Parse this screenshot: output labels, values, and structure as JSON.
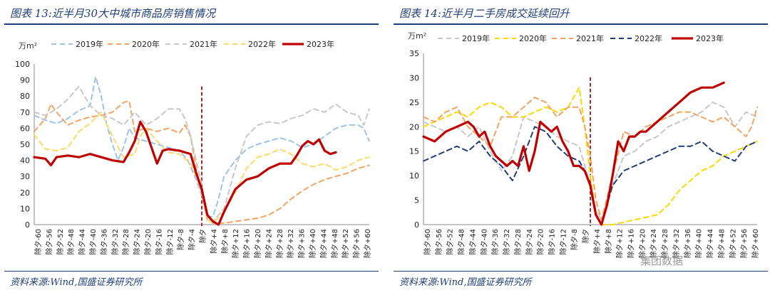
{
  "panels": [
    {
      "title": "图表 13:近半月30大中城市商品房销售情况",
      "source": "资料来源:Wind,国盛证券研究所"
    },
    {
      "title": "图表 14:近半月二手房成交延续回升",
      "source": "资料来源:Wind,国盛证券研究所"
    }
  ],
  "watermark": "集团数据",
  "chart_data": [
    {
      "type": "line",
      "title": "近半月30大中城市商品房销售情况",
      "ylabel": "万m²",
      "ylim": [
        0,
        100
      ],
      "yticks": [
        0,
        10,
        20,
        30,
        40,
        50,
        60,
        70,
        80,
        90,
        100
      ],
      "x_range": [
        -60,
        60
      ],
      "marker_x": 0,
      "marker_color": "#a52a2a",
      "xticks": [
        "除夕-60",
        "除夕-56",
        "除夕-52",
        "除夕-48",
        "除夕-44",
        "除夕-40",
        "除夕-36",
        "除夕-32",
        "除夕-28",
        "除夕-24",
        "除夕-20",
        "除夕-16",
        "除夕-12",
        "除夕-8",
        "除夕-4",
        "除夕",
        "除夕+4",
        "除夕+8",
        "除夕+12",
        "除夕+16",
        "除夕+20",
        "除夕+24",
        "除夕+28",
        "除夕+32",
        "除夕+36",
        "除夕+40",
        "除夕+44",
        "除夕+48",
        "除夕+52",
        "除夕+56",
        "除夕+60"
      ],
      "series": [
        {
          "name": "2019年",
          "color": "#9dc3e6",
          "dash": "dash",
          "width": 2,
          "x": [
            -60,
            -56,
            -52,
            -48,
            -44,
            -40,
            -38,
            -36,
            -34,
            -32,
            -30,
            -28,
            -26,
            -24,
            -20,
            -16,
            -12,
            -8,
            -5,
            -4,
            -2,
            0,
            2,
            4,
            6,
            8,
            12,
            16,
            20,
            24,
            28,
            32,
            36,
            40,
            44,
            48,
            52,
            56,
            58,
            60
          ],
          "y": [
            68,
            65,
            63,
            66,
            71,
            74,
            92,
            80,
            62,
            50,
            40,
            48,
            60,
            54,
            52,
            50,
            48,
            46,
            40,
            36,
            28,
            18,
            5,
            5,
            16,
            30,
            40,
            47,
            50,
            52,
            54,
            52,
            48,
            50,
            55,
            60,
            62,
            62,
            60,
            52
          ]
        },
        {
          "name": "2020年",
          "color": "#f4a460",
          "dash": "dash",
          "width": 2,
          "x": [
            -60,
            -56,
            -54,
            -52,
            -48,
            -44,
            -40,
            -36,
            -32,
            -28,
            -26,
            -24,
            -20,
            -16,
            -12,
            -8,
            -6,
            -4,
            -2,
            0,
            2,
            4,
            8,
            12,
            16,
            20,
            24,
            28,
            32,
            36,
            40,
            44,
            48,
            52,
            56,
            60
          ],
          "y": [
            58,
            66,
            75,
            70,
            62,
            65,
            67,
            68,
            70,
            76,
            77,
            58,
            60,
            58,
            60,
            57,
            62,
            55,
            35,
            20,
            3,
            1,
            1,
            2,
            3,
            4,
            6,
            10,
            16,
            21,
            25,
            28,
            30,
            32,
            35,
            37
          ]
        },
        {
          "name": "2021年",
          "color": "#c8c8c8",
          "dash": "dash",
          "width": 2,
          "x": [
            -60,
            -56,
            -52,
            -48,
            -44,
            -40,
            -36,
            -32,
            -28,
            -24,
            -20,
            -16,
            -12,
            -8,
            -6,
            -4,
            -2,
            0,
            2,
            4,
            8,
            12,
            16,
            20,
            24,
            28,
            32,
            36,
            40,
            44,
            48,
            52,
            56,
            58,
            60
          ],
          "y": [
            70,
            68,
            72,
            78,
            86,
            74,
            68,
            66,
            62,
            70,
            62,
            66,
            72,
            72,
            66,
            55,
            40,
            25,
            5,
            2,
            10,
            35,
            55,
            62,
            64,
            63,
            66,
            68,
            72,
            70,
            75,
            70,
            68,
            62,
            72
          ]
        },
        {
          "name": "2022年",
          "color": "#ffd966",
          "dash": "dash",
          "width": 2,
          "x": [
            -60,
            -56,
            -52,
            -48,
            -44,
            -40,
            -36,
            -32,
            -28,
            -24,
            -22,
            -20,
            -16,
            -12,
            -8,
            -4,
            -2,
            0,
            2,
            4,
            8,
            12,
            16,
            20,
            24,
            28,
            32,
            36,
            40,
            44,
            48,
            52,
            56,
            60
          ],
          "y": [
            56,
            47,
            46,
            48,
            58,
            63,
            70,
            55,
            42,
            44,
            55,
            60,
            52,
            45,
            44,
            38,
            30,
            20,
            3,
            1,
            8,
            20,
            35,
            42,
            44,
            47,
            44,
            38,
            36,
            38,
            34,
            36,
            40,
            42
          ]
        },
        {
          "name": "2023年",
          "color": "#c00000",
          "dash": "solid",
          "width": 3.2,
          "x": [
            -60,
            -56,
            -54,
            -52,
            -48,
            -44,
            -40,
            -36,
            -32,
            -28,
            -26,
            -24,
            -22,
            -20,
            -18,
            -16,
            -14,
            -12,
            -8,
            -4,
            -2,
            0,
            2,
            4,
            6,
            8,
            12,
            16,
            20,
            24,
            28,
            32,
            34,
            36,
            38,
            40,
            42,
            44,
            46,
            48
          ],
          "y": [
            42,
            41,
            37,
            42,
            43,
            42,
            44,
            42,
            40,
            39,
            45,
            52,
            64,
            58,
            48,
            38,
            46,
            47,
            46,
            44,
            32,
            22,
            6,
            2,
            0,
            8,
            22,
            28,
            30,
            35,
            38,
            38,
            43,
            49,
            52,
            50,
            53,
            46,
            44,
            45
          ]
        }
      ]
    },
    {
      "type": "line",
      "title": "近半月二手房成交延续回升",
      "ylabel": "万m²",
      "ylim": [
        0,
        35
      ],
      "yticks": [
        0,
        5,
        10,
        15,
        20,
        25,
        30,
        35
      ],
      "x_range": [
        -60,
        60
      ],
      "marker_x": 0,
      "marker_color": "#a52a2a",
      "xticks": [
        "除夕-60",
        "除夕-56",
        "除夕-52",
        "除夕-48",
        "除夕-44",
        "除夕-40",
        "除夕-36",
        "除夕-32",
        "除夕-28",
        "除夕-24",
        "除夕-20",
        "除夕-16",
        "除夕-12",
        "除夕-8",
        "除夕",
        "除夕+4",
        "除夕+8",
        "除夕+12",
        "除夕+16",
        "除夕+20",
        "除夕+24",
        "除夕+28",
        "除夕+32",
        "除夕+36",
        "除夕+40",
        "除夕+44",
        "除夕+48",
        "除夕+52",
        "除夕+56",
        "除夕+60"
      ],
      "series": [
        {
          "name": "2019年",
          "color": "#c8c8c8",
          "dash": "dash",
          "width": 2,
          "x": [
            -60,
            -56,
            -52,
            -48,
            -44,
            -40,
            -36,
            -32,
            -28,
            -24,
            -20,
            -16,
            -12,
            -8,
            -4,
            -2,
            0,
            2,
            4,
            8,
            12,
            16,
            20,
            24,
            28,
            32,
            36,
            40,
            44,
            48,
            52,
            56,
            60
          ],
          "y": [
            21,
            20,
            19,
            20,
            18,
            20,
            15,
            11,
            14,
            22,
            21,
            20,
            18,
            17,
            16,
            12,
            8,
            3,
            1,
            8,
            14,
            15,
            17,
            18,
            20,
            21,
            22,
            23,
            25,
            24,
            20,
            23,
            22
          ]
        },
        {
          "name": "2020年",
          "color": "#ffd700",
          "dash": "dash",
          "width": 2,
          "x": [
            -60,
            -56,
            -52,
            -48,
            -44,
            -40,
            -36,
            -32,
            -28,
            -24,
            -20,
            -16,
            -12,
            -8,
            -4,
            -2,
            0,
            2,
            4,
            8,
            12,
            16,
            20,
            24,
            28,
            32,
            36,
            40,
            44,
            48,
            52,
            56,
            60
          ],
          "y": [
            20,
            21,
            22,
            23,
            22,
            24,
            25,
            24,
            22,
            22,
            23,
            24,
            23,
            24,
            28,
            20,
            10,
            2,
            0,
            0,
            0.5,
            1,
            1.5,
            2,
            4,
            7,
            9,
            11,
            12,
            14,
            15,
            16,
            17
          ]
        },
        {
          "name": "2021年",
          "color": "#f4a460",
          "dash": "dash",
          "width": 2,
          "x": [
            -60,
            -56,
            -52,
            -48,
            -44,
            -40,
            -36,
            -32,
            -28,
            -24,
            -20,
            -16,
            -12,
            -8,
            -4,
            -2,
            0,
            2,
            4,
            8,
            12,
            16,
            20,
            24,
            28,
            32,
            36,
            40,
            44,
            48,
            52,
            56,
            58,
            60
          ],
          "y": [
            22,
            21,
            23,
            24,
            20,
            18,
            16,
            22,
            22,
            24,
            26,
            25,
            22,
            24,
            24,
            20,
            14,
            5,
            1,
            10,
            19,
            18,
            20,
            21,
            22,
            23,
            23,
            22,
            21,
            22,
            20,
            18,
            20,
            24
          ]
        },
        {
          "name": "2022年",
          "color": "#1f3f7a",
          "dash": "dash",
          "width": 2,
          "x": [
            -60,
            -56,
            -52,
            -48,
            -44,
            -40,
            -36,
            -32,
            -28,
            -24,
            -20,
            -16,
            -12,
            -8,
            -4,
            -2,
            0,
            2,
            4,
            8,
            12,
            16,
            20,
            24,
            28,
            32,
            36,
            40,
            44,
            48,
            52,
            56,
            60
          ],
          "y": [
            13,
            14,
            15,
            16,
            15,
            17,
            14,
            12,
            9,
            14,
            20,
            19,
            16,
            14,
            13,
            11,
            8,
            2,
            0,
            8,
            11,
            12,
            13,
            14,
            15,
            16,
            16,
            17,
            15,
            14,
            13,
            16,
            17
          ]
        },
        {
          "name": "2023年",
          "color": "#c00000",
          "dash": "solid",
          "width": 3.2,
          "x": [
            -60,
            -56,
            -52,
            -48,
            -44,
            -42,
            -40,
            -38,
            -36,
            -34,
            -32,
            -30,
            -28,
            -26,
            -24,
            -22,
            -20,
            -18,
            -16,
            -14,
            -12,
            -10,
            -8,
            -6,
            -4,
            -2,
            0,
            2,
            4,
            6,
            8,
            10,
            12,
            14,
            16,
            18,
            20,
            24,
            28,
            32,
            36,
            40,
            44,
            46,
            48
          ],
          "y": [
            18,
            17,
            19,
            20,
            21,
            20,
            18,
            19,
            16,
            14,
            13,
            12,
            13,
            12,
            16,
            11,
            15,
            21,
            20,
            19,
            20,
            17,
            15,
            12,
            12,
            11,
            8,
            2,
            0,
            4,
            10,
            17,
            15,
            18,
            18,
            19,
            19,
            21,
            23,
            25,
            27,
            28,
            28,
            28.5,
            29
          ]
        }
      ]
    }
  ]
}
